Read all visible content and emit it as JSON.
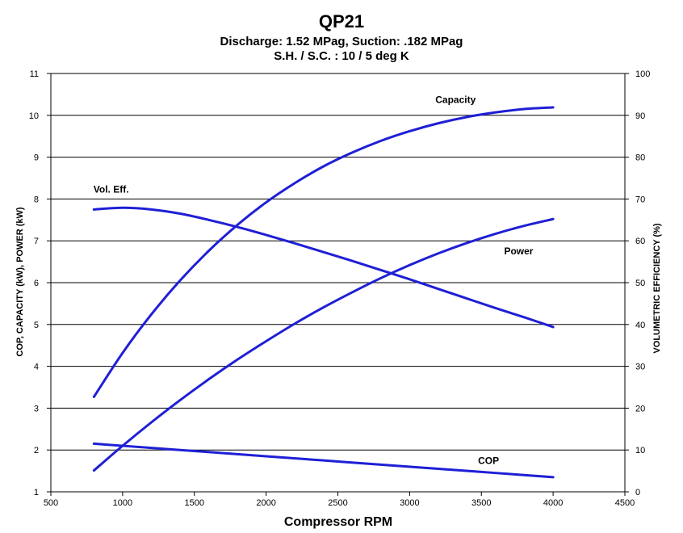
{
  "chart_data": {
    "type": "line",
    "title": "QP21",
    "subtitle": "Discharge: 1.52 MPag, Suction: .182 MPag",
    "subtitle2": "S.H. / S.C. : 10 / 5 deg K",
    "xlabel": "Compressor RPM",
    "ylabel": "COP, CAPACITY (kW), POWER (kW)",
    "y2label": "VOLUMETRIC EFFICIENCY (%)",
    "xlim": [
      500,
      4500
    ],
    "ylim": [
      1,
      11
    ],
    "y2lim": [
      0,
      100
    ],
    "xticks": [
      500,
      1000,
      1500,
      2000,
      2500,
      3000,
      3500,
      4000,
      4500
    ],
    "yticks": [
      1,
      2,
      3,
      4,
      5,
      6,
      7,
      8,
      9,
      10,
      11
    ],
    "y2ticks": [
      0,
      10,
      20,
      30,
      40,
      50,
      60,
      70,
      80,
      90,
      100
    ],
    "grid": "horizontal",
    "line_color": "#1f1fd6",
    "series": [
      {
        "name": "Capacity",
        "axis": "left",
        "x": [
          800,
          1000,
          1200,
          1400,
          1600,
          1800,
          2000,
          2200,
          2400,
          2600,
          2800,
          3000,
          3200,
          3400,
          3600,
          3800,
          4000
        ],
        "y": [
          3.27,
          4.32,
          5.24,
          6.05,
          6.76,
          7.38,
          7.92,
          8.38,
          8.78,
          9.11,
          9.39,
          9.62,
          9.81,
          9.96,
          10.07,
          10.15,
          10.19
        ]
      },
      {
        "name": "Power",
        "axis": "left",
        "x": [
          800,
          1000,
          1200,
          1400,
          1600,
          1800,
          2000,
          2200,
          2400,
          2600,
          2800,
          3000,
          3200,
          3400,
          3600,
          3800,
          4000
        ],
        "y": [
          1.51,
          2.1,
          2.66,
          3.19,
          3.69,
          4.16,
          4.6,
          5.02,
          5.41,
          5.77,
          6.11,
          6.42,
          6.7,
          6.95,
          7.17,
          7.36,
          7.52
        ]
      },
      {
        "name": "Vol. Eff.",
        "axis": "right",
        "x": [
          800,
          1000,
          1200,
          1400,
          1600,
          1800,
          2000,
          2200,
          2400,
          2600,
          2800,
          3000,
          3200,
          3400,
          3600,
          3800,
          4000
        ],
        "y": [
          67.5,
          67.9,
          67.5,
          66.5,
          65.0,
          63.3,
          61.4,
          59.4,
          57.3,
          55.2,
          53.0,
          50.8,
          48.5,
          46.2,
          43.9,
          41.7,
          39.4
        ]
      },
      {
        "name": "COP",
        "axis": "left",
        "x": [
          800,
          1200,
          1600,
          2000,
          2400,
          2800,
          3200,
          3600,
          4000
        ],
        "y": [
          2.15,
          2.05,
          1.95,
          1.85,
          1.75,
          1.65,
          1.55,
          1.45,
          1.35
        ]
      }
    ],
    "annotations": [
      {
        "text": "Capacity",
        "x": 3320,
        "y": 10.3
      },
      {
        "text": "Vol. Eff.",
        "x": 920,
        "y": 8.15
      },
      {
        "text": "Power",
        "x": 3760,
        "y": 6.68
      },
      {
        "text": "COP",
        "x": 3550,
        "y": 1.67
      }
    ]
  }
}
